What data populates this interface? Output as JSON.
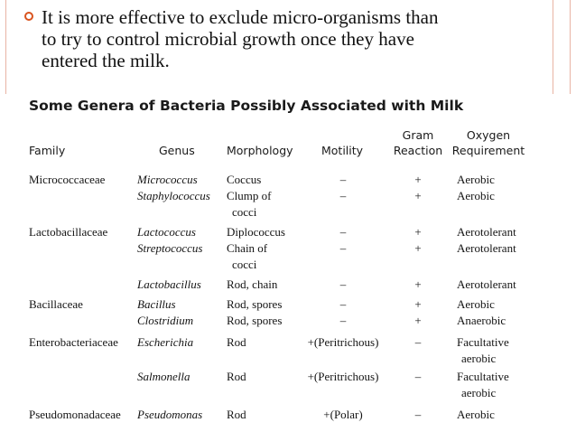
{
  "bullet": {
    "lines": [
      "It is more effective to exclude micro-organisms than",
      "to try to control microbial growth once they have",
      "entered the milk."
    ]
  },
  "table": {
    "title": "Some Genera of Bacteria Possibly Associated with Milk",
    "headers": {
      "family": "Family",
      "genus": "Genus",
      "morphology": "Morphology",
      "motility": "Motility",
      "gram_1": "Gram",
      "gram_2": "Reaction",
      "oxygen_1": "Oxygen",
      "oxygen_2": "Requirement"
    },
    "rows": [
      {
        "family": "Micrococcaceae",
        "genus": "Micrococcus",
        "morphology": "Coccus",
        "morphology_2": "",
        "motility": "–",
        "gram": "+",
        "oxygen": "Aerobic",
        "oxygen_2": ""
      },
      {
        "family": "",
        "genus": "Staphylococcus",
        "morphology": "Clump of",
        "morphology_2": "cocci",
        "motility": "–",
        "gram": "+",
        "oxygen": "Aerobic",
        "oxygen_2": ""
      },
      {
        "family": "Lactobacillaceae",
        "genus": "Lactococcus",
        "morphology": "Diplococcus",
        "morphology_2": "",
        "motility": "–",
        "gram": "+",
        "oxygen": "Aerotolerant",
        "oxygen_2": ""
      },
      {
        "family": "",
        "genus": "Streptococcus",
        "morphology": "Chain of",
        "morphology_2": "cocci",
        "motility": "–",
        "gram": "+",
        "oxygen": "Aerotolerant",
        "oxygen_2": ""
      },
      {
        "family": "",
        "genus": "Lactobacillus",
        "morphology": "Rod, chain",
        "morphology_2": "",
        "motility": "–",
        "gram": "+",
        "oxygen": "Aerotolerant",
        "oxygen_2": ""
      },
      {
        "family": "Bacillaceae",
        "genus": "Bacillus",
        "morphology": "Rod, spores",
        "morphology_2": "",
        "motility": "–",
        "gram": "+",
        "oxygen": "Aerobic",
        "oxygen_2": ""
      },
      {
        "family": "",
        "genus": "Clostridium",
        "morphology": "Rod, spores",
        "morphology_2": "",
        "motility": "–",
        "gram": "+",
        "oxygen": "Anaerobic",
        "oxygen_2": ""
      },
      {
        "family": "Enterobacteriaceae",
        "genus": "Escherichia",
        "morphology": "Rod",
        "morphology_2": "",
        "motility": "+(Peritrichous)",
        "gram": "–",
        "oxygen": "Facultative",
        "oxygen_2": "aerobic"
      },
      {
        "family": "",
        "genus": "Salmonella",
        "morphology": "Rod",
        "morphology_2": "",
        "motility": "+(Peritrichous)",
        "gram": "–",
        "oxygen": "Facultative",
        "oxygen_2": "aerobic"
      },
      {
        "family": "Pseudomonadaceae",
        "genus": "Pseudomonas",
        "morphology": "Rod",
        "morphology_2": "",
        "motility": "+(Polar)",
        "gram": "–",
        "oxygen": "Aerobic",
        "oxygen_2": ""
      }
    ]
  }
}
